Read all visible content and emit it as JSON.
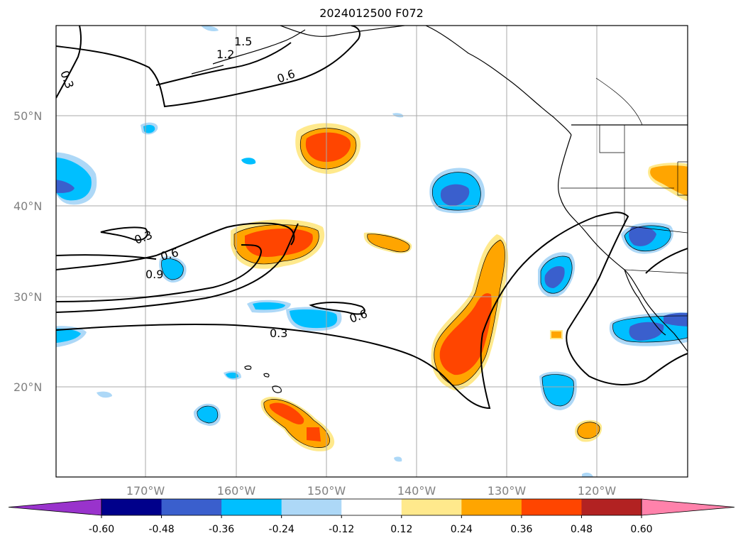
{
  "title": "2024012500 F072",
  "map": {
    "lat_labels": [
      "50°N",
      "40°N",
      "30°N",
      "20°N"
    ],
    "lon_labels": [
      "170°W",
      "160°W",
      "150°W",
      "140°W",
      "130°W",
      "120°W"
    ],
    "contour_labels": [
      "1.5",
      "1.2",
      "0.6",
      "0.3",
      "0.3",
      "0.6",
      "0.9",
      "0.6",
      "0.3"
    ]
  },
  "colorbar": {
    "labels": [
      "-0.60",
      "-0.48",
      "-0.36",
      "-0.24",
      "-0.12",
      "0.12",
      "0.24",
      "0.36",
      "0.48",
      "0.60"
    ],
    "colors": [
      "#9933cc",
      "#00008b",
      "#3a5fcd",
      "#00bfff",
      "#add8f7",
      "#ffffff",
      "#ffe98c",
      "#ffa500",
      "#ff4500",
      "#b22222",
      "#ff82ab"
    ]
  }
}
